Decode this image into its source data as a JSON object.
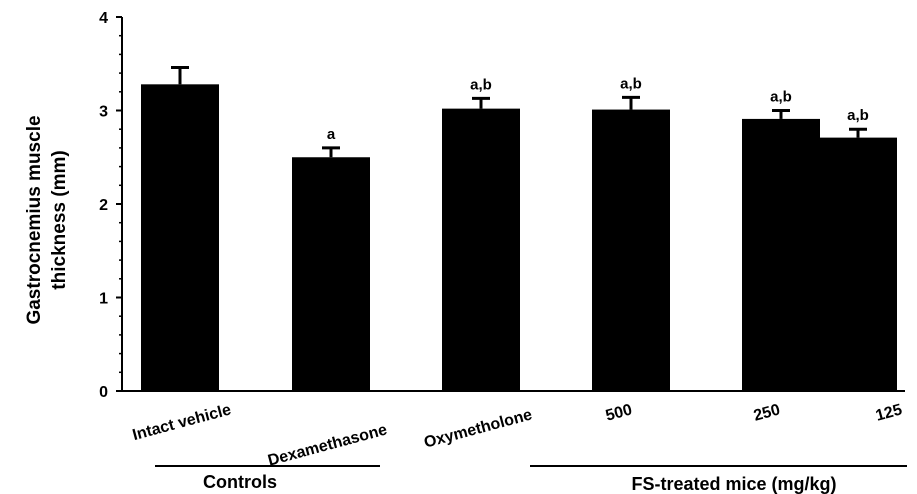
{
  "chart_data": {
    "type": "bar",
    "categories": [
      "Intact vehicle",
      "Dexamethasone",
      "Oxymetholone",
      "500",
      "250",
      "125"
    ],
    "values": [
      3.28,
      2.5,
      3.02,
      3.01,
      2.91,
      2.71
    ],
    "errors": [
      0.18,
      0.1,
      0.11,
      0.13,
      0.09,
      0.09
    ],
    "annotations": [
      "",
      "a",
      "a,b",
      "a,b",
      "a,b",
      "a,b"
    ],
    "ylabel_line1": "Gastrocnemius muscle",
    "ylabel_line2": "thickness (mm)",
    "xlabel": "",
    "ylim": [
      0,
      4
    ],
    "yticks": [
      "0",
      "1",
      "2",
      "3",
      "4"
    ],
    "groups": [
      {
        "label": "Controls",
        "categories": [
          "Intact vehicle",
          "Dexamethasone"
        ]
      },
      {
        "label": "FS-treated mice (mg/kg)",
        "categories": [
          "500",
          "250",
          "125"
        ]
      }
    ],
    "bar_color": "#000000",
    "grid": false
  }
}
